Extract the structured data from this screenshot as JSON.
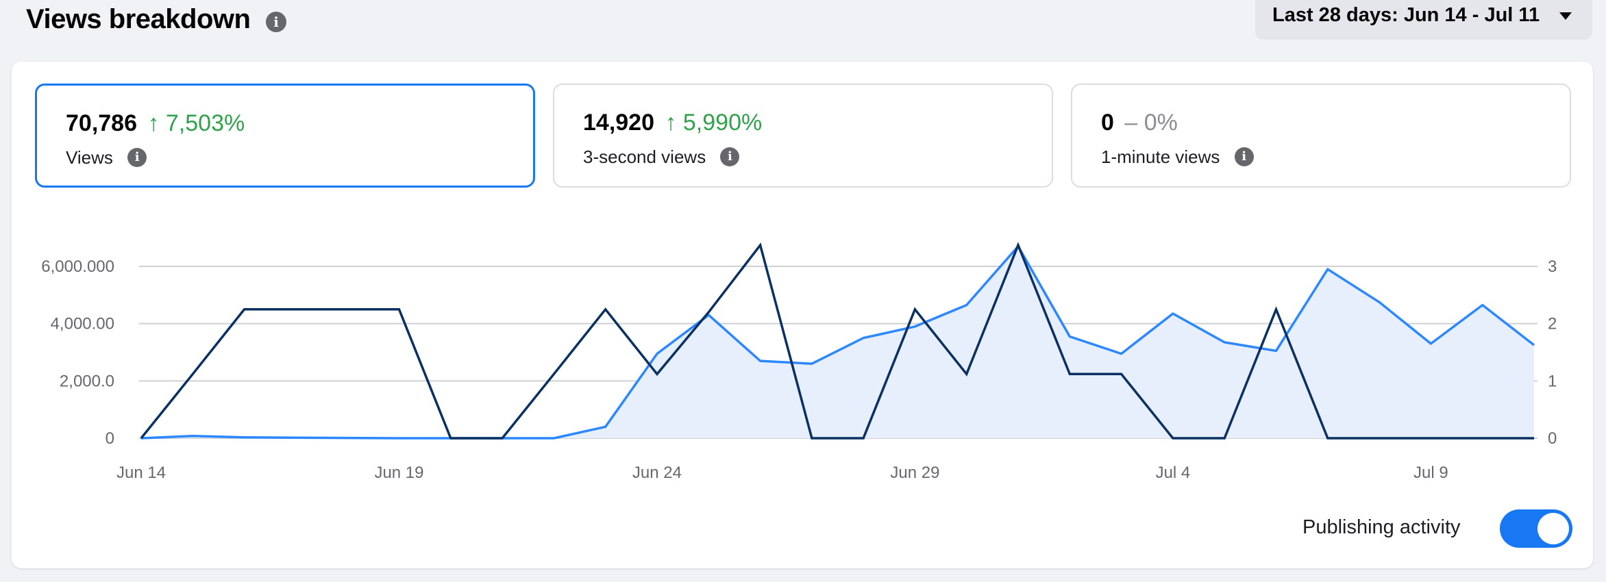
{
  "header": {
    "title": "Views breakdown",
    "info_icon": "info-icon",
    "date_range": "Last 28 days: Jun 14 - Jul 11"
  },
  "metrics": [
    {
      "value": "70,786",
      "change": "↑ 7,503%",
      "label": "Views",
      "active": true
    },
    {
      "value": "14,920",
      "change": "↑ 5,990%",
      "label": "3-second views",
      "active": false
    },
    {
      "value": "0",
      "change": "– 0%",
      "label": "1-minute views",
      "active": false
    }
  ],
  "toggle": {
    "label": "Publishing activity",
    "on": true
  },
  "colors": {
    "accent": "#1877f2",
    "views_line": "#2d88ff",
    "area_fill": "#e7effc",
    "publishing_line": "#0a3161",
    "positive": "#31a24c"
  },
  "chart_data": {
    "type": "line",
    "x": [
      "Jun 14",
      "Jun 15",
      "Jun 16",
      "Jun 17",
      "Jun 18",
      "Jun 19",
      "Jun 20",
      "Jun 21",
      "Jun 22",
      "Jun 23",
      "Jun 24",
      "Jun 25",
      "Jun 26",
      "Jun 27",
      "Jun 28",
      "Jun 29",
      "Jun 30",
      "Jul 1",
      "Jul 2",
      "Jul 3",
      "Jul 4",
      "Jul 5",
      "Jul 6",
      "Jul 7",
      "Jul 8",
      "Jul 9",
      "Jul 10",
      "Jul 11"
    ],
    "x_tick_labels": [
      "Jun 14",
      "Jun 19",
      "Jun 24",
      "Jun 29",
      "Jul 4",
      "Jul 9"
    ],
    "y_left_ticks": [
      "0",
      "2,000.0",
      "4,000.00",
      "6,000.000"
    ],
    "y_right_ticks": [
      "0",
      "1",
      "2",
      "3"
    ],
    "y_left_lim": [
      0,
      6000
    ],
    "y_right_lim": [
      0,
      3
    ],
    "grid": true,
    "series": [
      {
        "axis": "left",
        "style": "area",
        "values": [
          0,
          80,
          30,
          20,
          10,
          0,
          0,
          0,
          0,
          400,
          2950,
          4300,
          2700,
          2600,
          3500,
          3900,
          4650,
          6700,
          3550,
          2950,
          4350,
          3350,
          3050,
          5900,
          4750,
          3300,
          4650,
          3250
        ]
      },
      {
        "axis": "right",
        "style": "line",
        "values": [
          0,
          1.12,
          2.25,
          2.25,
          2.25,
          2.25,
          0,
          0,
          1.12,
          2.25,
          1.12,
          2.2,
          3.37,
          0,
          0,
          2.25,
          1.12,
          3.37,
          1.12,
          1.12,
          0,
          0,
          2.25,
          0,
          0,
          0,
          0,
          0
        ]
      }
    ]
  }
}
